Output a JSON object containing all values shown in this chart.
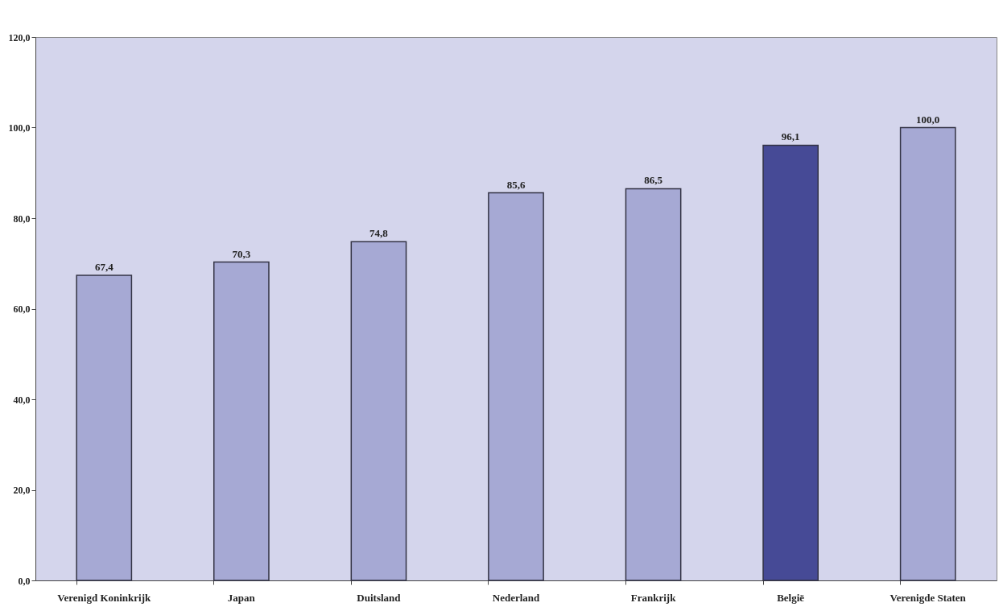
{
  "chart_data": {
    "type": "bar",
    "categories": [
      "Verenigd Koninkrijk",
      "Japan",
      "Duitsland",
      "Nederland",
      "Frankrijk",
      "België",
      "Verenigde Staten"
    ],
    "values": [
      67.4,
      70.3,
      74.8,
      85.6,
      86.5,
      96.1,
      100.0
    ],
    "colors": [
      "#a6a9d4",
      "#a6a9d4",
      "#a6a9d4",
      "#a6a9d4",
      "#a6a9d4",
      "#464a96",
      "#a6a9d4"
    ],
    "value_labels": [
      "67,4",
      "70,3",
      "74,8",
      "85,6",
      "86,5",
      "96,1",
      "100,0"
    ],
    "ylim": [
      0,
      120
    ],
    "yticks": [
      {
        "value": 0,
        "label": "0,0"
      },
      {
        "value": 20,
        "label": "20,0"
      },
      {
        "value": 40,
        "label": "40,0"
      },
      {
        "value": 60,
        "label": "60,0"
      },
      {
        "value": 80,
        "label": "80,0"
      },
      {
        "value": 100,
        "label": "100,0"
      },
      {
        "value": 120,
        "label": "120,0"
      }
    ],
    "grid": false
  }
}
